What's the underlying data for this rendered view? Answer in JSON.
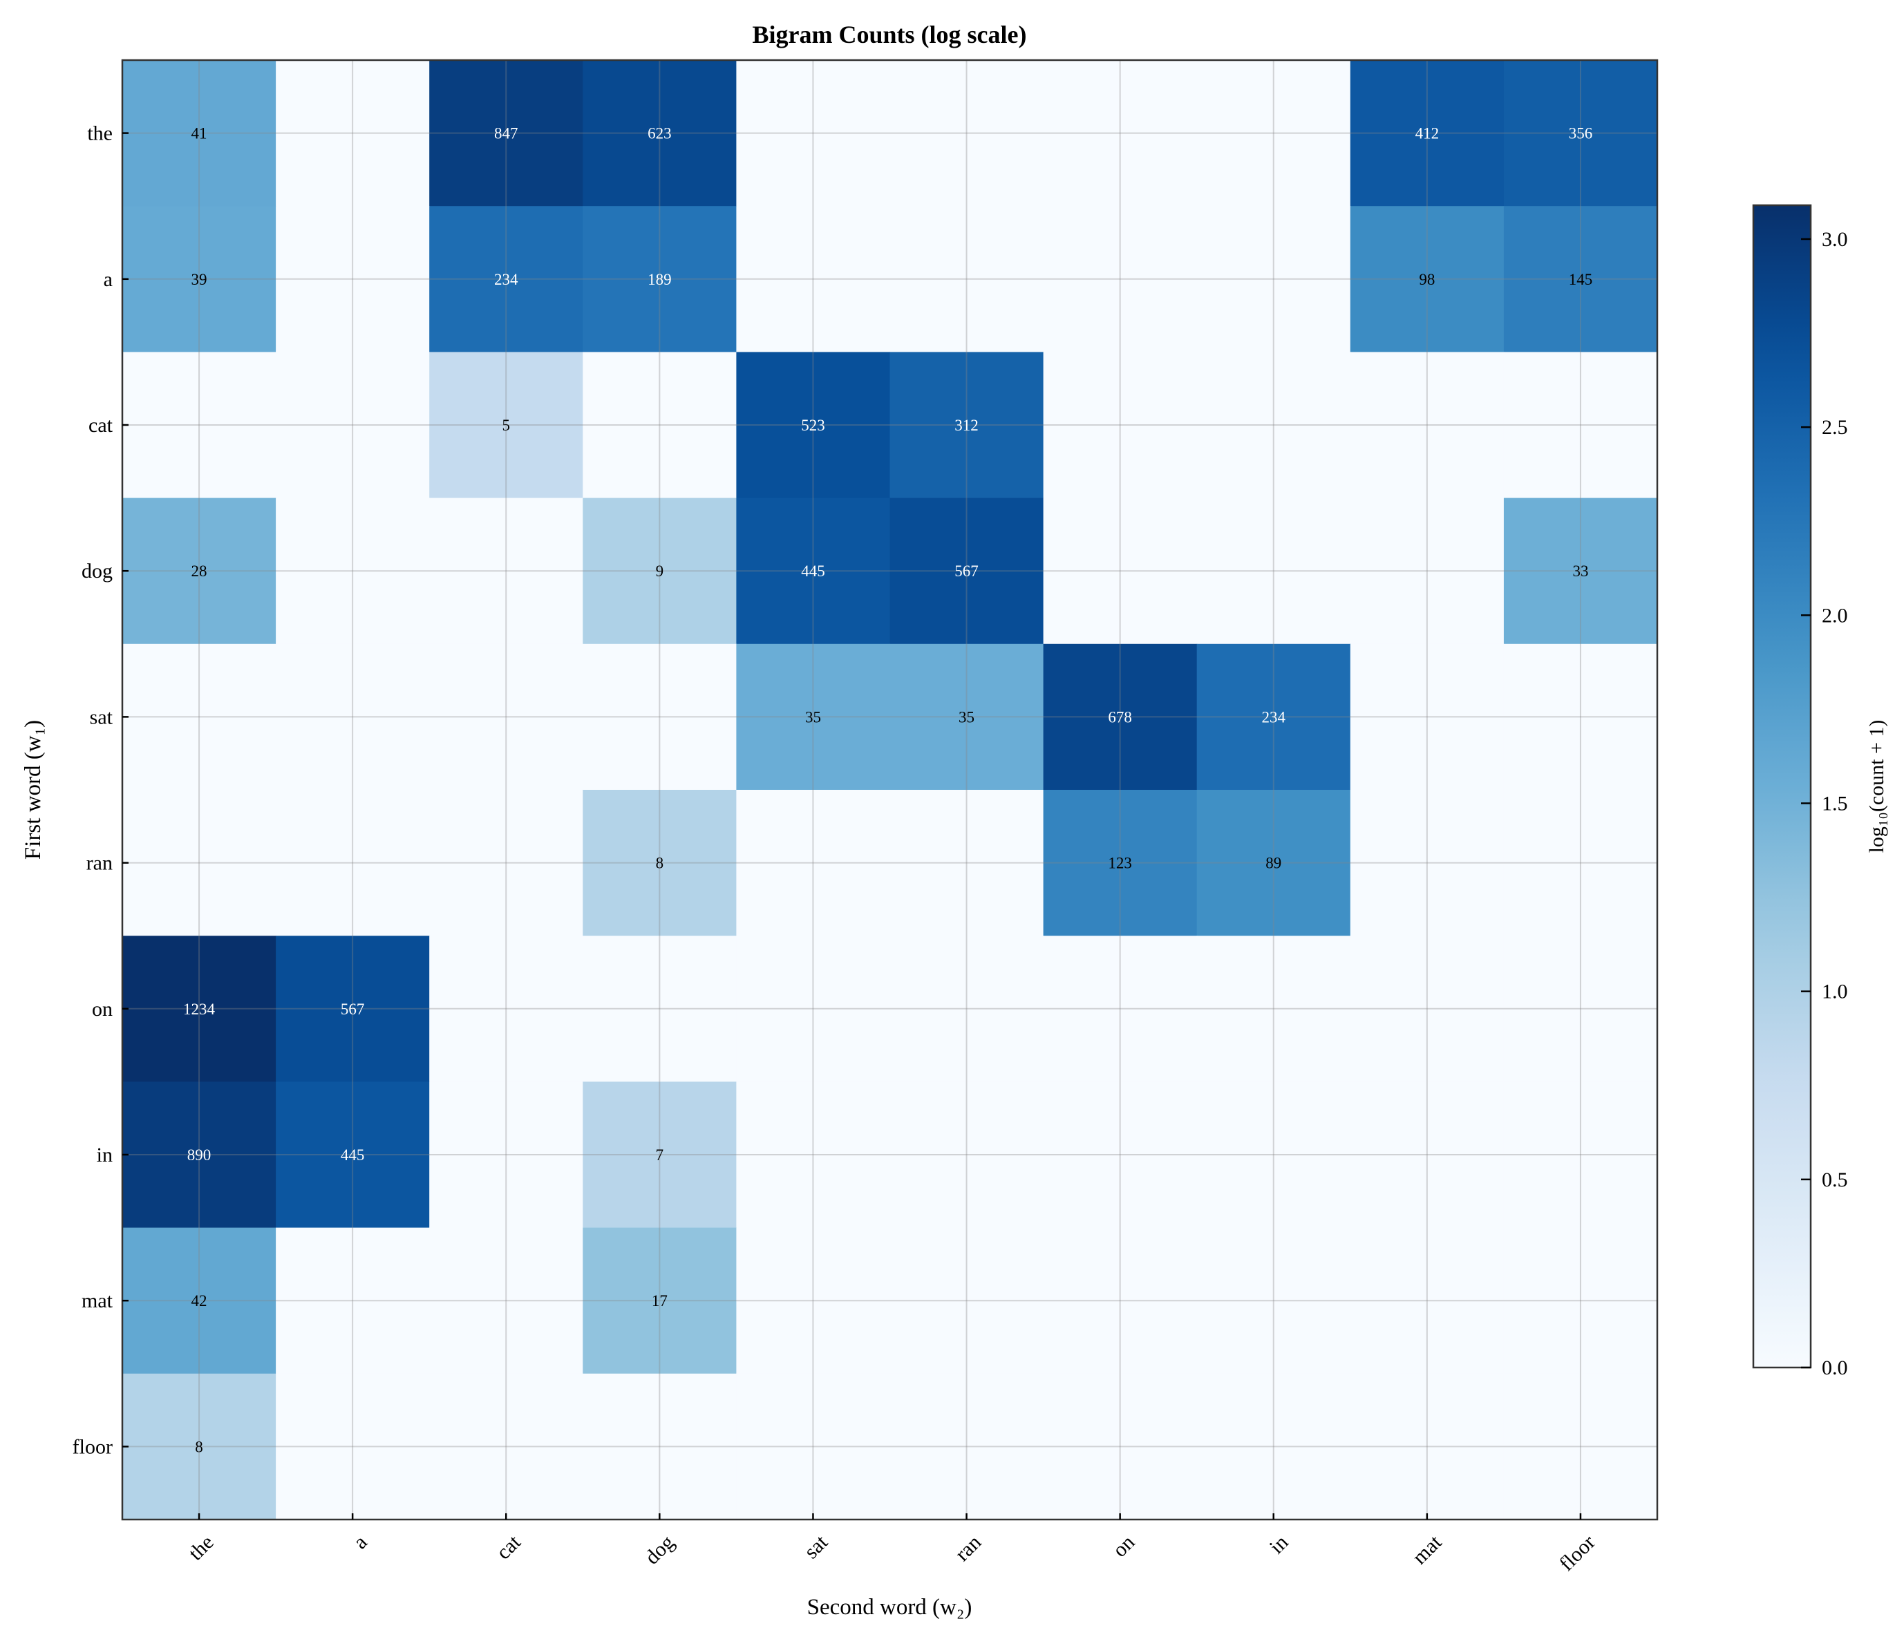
{
  "chart_data": {
    "type": "heatmap",
    "title": "Bigram Counts (log scale)",
    "xlabel": "Second word (w₂)",
    "ylabel": "First word (w₁)",
    "x_categories": [
      "the",
      "a",
      "cat",
      "dog",
      "sat",
      "ran",
      "on",
      "in",
      "mat",
      "floor"
    ],
    "y_categories": [
      "the",
      "a",
      "cat",
      "dog",
      "sat",
      "ran",
      "on",
      "in",
      "mat",
      "floor"
    ],
    "values": [
      [
        41,
        0,
        847,
        623,
        0,
        0,
        0,
        0,
        412,
        356
      ],
      [
        39,
        0,
        234,
        189,
        0,
        0,
        0,
        0,
        98,
        145
      ],
      [
        0,
        0,
        5,
        0,
        523,
        312,
        0,
        0,
        0,
        0
      ],
      [
        28,
        0,
        0,
        9,
        445,
        567,
        0,
        0,
        0,
        33
      ],
      [
        0,
        0,
        0,
        0,
        35,
        35,
        678,
        234,
        0,
        0
      ],
      [
        0,
        0,
        0,
        8,
        0,
        0,
        123,
        89,
        0,
        0
      ],
      [
        1234,
        567,
        0,
        0,
        0,
        0,
        0,
        0,
        0,
        0
      ],
      [
        890,
        445,
        0,
        7,
        0,
        0,
        0,
        0,
        0,
        0
      ],
      [
        42,
        0,
        0,
        17,
        0,
        0,
        0,
        0,
        0,
        0
      ],
      [
        8,
        0,
        0,
        0,
        0,
        0,
        0,
        0,
        0,
        0
      ]
    ],
    "color_transform": "log10(count + 1)",
    "colormap": "Blues",
    "colorbar": {
      "label": "log₁₀(count + 1)",
      "range": [
        0,
        3.09
      ],
      "ticks": [
        "0.0",
        "0.5",
        "1.0",
        "1.5",
        "2.0",
        "2.5",
        "3.0"
      ]
    },
    "grid": true,
    "annotations": "counts shown in non-zero cells"
  }
}
